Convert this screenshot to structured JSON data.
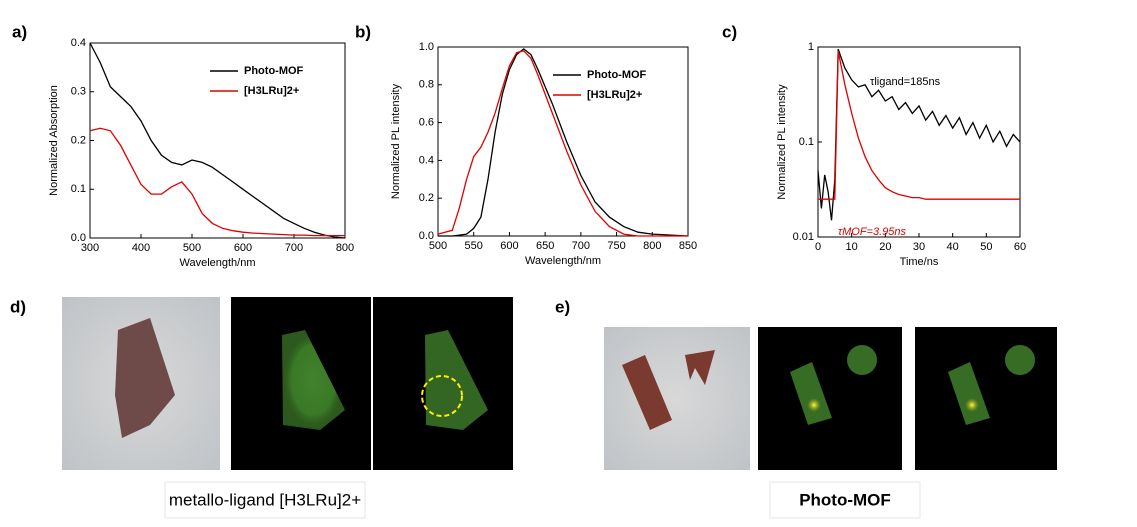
{
  "chart_data": [
    {
      "type": "line",
      "label": "a)",
      "y_label": "Normalized Absorption",
      "x_label": "Wavelength/nm",
      "xlim": [
        300,
        800
      ],
      "xticks": [
        300,
        400,
        500,
        600,
        700,
        800
      ],
      "ylim": [
        0,
        0.4
      ],
      "yticks": [
        {
          "value": 0,
          "label": "0.0"
        },
        0.1,
        0.2,
        0.3,
        0.4
      ],
      "legend": "upper right",
      "x": [
        300,
        320,
        340,
        360,
        380,
        400,
        420,
        440,
        460,
        480,
        500,
        520,
        540,
        560,
        580,
        600,
        620,
        640,
        660,
        680,
        700,
        720,
        740,
        760,
        780,
        800
      ],
      "series": [
        {
          "name": "Photo-MOF",
          "color": "#000000",
          "values": [
            0.4,
            0.36,
            0.31,
            0.29,
            0.27,
            0.24,
            0.2,
            0.17,
            0.155,
            0.15,
            0.16,
            0.155,
            0.145,
            0.13,
            0.115,
            0.1,
            0.085,
            0.07,
            0.055,
            0.04,
            0.03,
            0.02,
            0.012,
            0.006,
            0.002,
            0
          ]
        },
        {
          "name": "[H3LRu]2+",
          "color": "#e00000",
          "values": [
            0.22,
            0.225,
            0.22,
            0.19,
            0.15,
            0.11,
            0.09,
            0.09,
            0.105,
            0.115,
            0.09,
            0.05,
            0.03,
            0.02,
            0.015,
            0.012,
            0.01,
            0.009,
            0.008,
            0.007,
            0.006,
            0.006,
            0.005,
            0.005,
            0.005,
            0.005
          ]
        }
      ]
    },
    {
      "type": "line",
      "label": "b)",
      "y_label": "Normalized PL intensity",
      "x_label": "Wavelength/nm",
      "xlim": [
        500,
        850
      ],
      "xticks": [
        500,
        550,
        600,
        650,
        700,
        750,
        800,
        850
      ],
      "ylim": [
        0,
        1.0
      ],
      "yticks": [
        {
          "value": 0,
          "label": "0.0"
        },
        0.2,
        0.4,
        0.6,
        0.8,
        {
          "value": 1,
          "label": "1.0"
        }
      ],
      "legend": "upper right",
      "x": [
        500,
        520,
        530,
        540,
        550,
        560,
        570,
        580,
        590,
        600,
        610,
        620,
        630,
        640,
        660,
        680,
        700,
        720,
        740,
        760,
        780,
        800,
        850
      ],
      "series": [
        {
          "name": "Photo-MOF",
          "color": "#000000",
          "values": [
            0,
            0,
            0.005,
            0.01,
            0.04,
            0.1,
            0.3,
            0.55,
            0.75,
            0.88,
            0.96,
            0.99,
            0.96,
            0.88,
            0.7,
            0.5,
            0.32,
            0.18,
            0.1,
            0.05,
            0.02,
            0.01,
            0
          ]
        },
        {
          "name": "[H3LRu]2+",
          "color": "#e00000",
          "values": [
            0.01,
            0.03,
            0.15,
            0.3,
            0.42,
            0.47,
            0.55,
            0.65,
            0.78,
            0.9,
            0.97,
            0.98,
            0.94,
            0.85,
            0.65,
            0.45,
            0.27,
            0.13,
            0.05,
            0.01,
            0,
            0,
            0
          ]
        }
      ]
    },
    {
      "type": "line",
      "label": "c)",
      "y_label": "Normalized PL intensity",
      "x_label": "Time/ns",
      "xlim": [
        0,
        60
      ],
      "xticks": [
        0,
        10,
        20,
        30,
        40,
        50,
        60
      ],
      "ylim": [
        0.01,
        1
      ],
      "yticks": [
        0.01,
        0.1,
        1
      ],
      "log_y": true,
      "annotations": [
        {
          "text": "τligand=185ns",
          "color": "#000000"
        },
        {
          "text": "τMOF=3.95ns",
          "color": "#e00000"
        }
      ],
      "x": [
        0,
        1,
        2,
        3,
        4,
        5,
        6,
        7,
        8,
        10,
        12,
        14,
        16,
        18,
        20,
        22,
        24,
        26,
        28,
        30,
        32,
        34,
        36,
        38,
        40,
        42,
        44,
        46,
        48,
        50,
        52,
        54,
        56,
        58,
        60
      ],
      "series": [
        {
          "color": "#000000",
          "values": [
            0.05,
            0.02,
            0.045,
            0.03,
            0.015,
            0.04,
            0.95,
            0.75,
            0.6,
            0.45,
            0.38,
            0.4,
            0.3,
            0.35,
            0.27,
            0.3,
            0.22,
            0.26,
            0.2,
            0.24,
            0.17,
            0.21,
            0.15,
            0.19,
            0.14,
            0.18,
            0.12,
            0.16,
            0.11,
            0.15,
            0.1,
            0.13,
            0.09,
            0.12,
            0.1
          ]
        },
        {
          "color": "#e00000",
          "values": [
            0.025,
            0.025,
            0.025,
            0.025,
            0.025,
            0.025,
            0.9,
            0.6,
            0.4,
            0.2,
            0.11,
            0.07,
            0.05,
            0.04,
            0.033,
            0.03,
            0.028,
            0.027,
            0.026,
            0.026,
            0.025,
            0.025,
            0.025,
            0.025,
            0.025,
            0.025,
            0.025,
            0.025,
            0.025,
            0.025,
            0.025,
            0.025,
            0.025,
            0.025,
            0.025
          ]
        }
      ]
    }
  ],
  "panels": {
    "d": "d)",
    "e": "e)"
  },
  "captions": [
    "metallo-ligand [H3LRu]2+",
    "Photo-MOF"
  ]
}
